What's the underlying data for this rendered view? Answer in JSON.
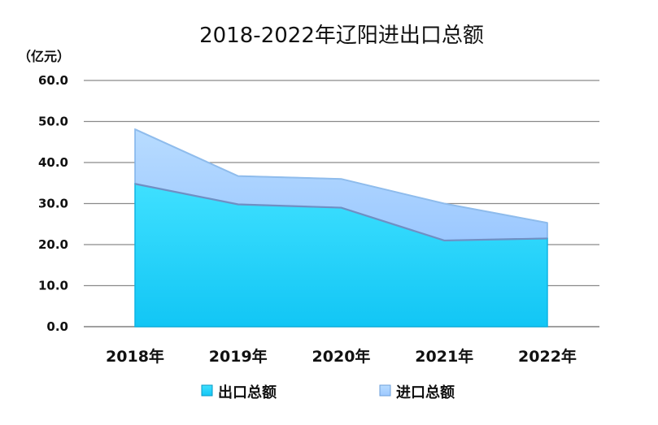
{
  "chart_data": {
    "type": "area",
    "title": "2018-2022年辽阳进出口总额",
    "unit_label": "（亿元）",
    "categories": [
      "2018年",
      "2019年",
      "2020年",
      "2021年",
      "2022年"
    ],
    "stacked": true,
    "ylim": [
      0,
      60
    ],
    "yticks": [
      "0.0",
      "10.0",
      "20.0",
      "30.0",
      "40.0",
      "50.0",
      "60.0"
    ],
    "grid": true,
    "legend_position": "bottom",
    "series": [
      {
        "name": "出口总额",
        "values": [
          34.8,
          29.8,
          29.0,
          21.0,
          21.5
        ],
        "color": "#1ECFFF"
      },
      {
        "name": "进口总额",
        "values": [
          13.3,
          6.9,
          7.0,
          9.0,
          3.8
        ],
        "color": "#A8D2FF"
      }
    ]
  }
}
